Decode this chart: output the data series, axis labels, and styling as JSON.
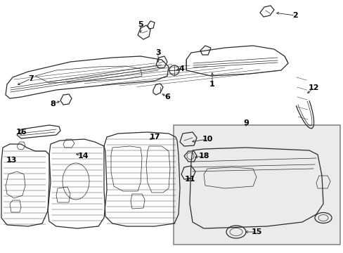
{
  "bg_color": "#ffffff",
  "line_color": "#2a2a2a",
  "label_color": "#000000",
  "box_bg": "#ebebeb",
  "box_edge": "#888888",
  "figsize": [
    4.89,
    3.6
  ],
  "dpi": 100
}
